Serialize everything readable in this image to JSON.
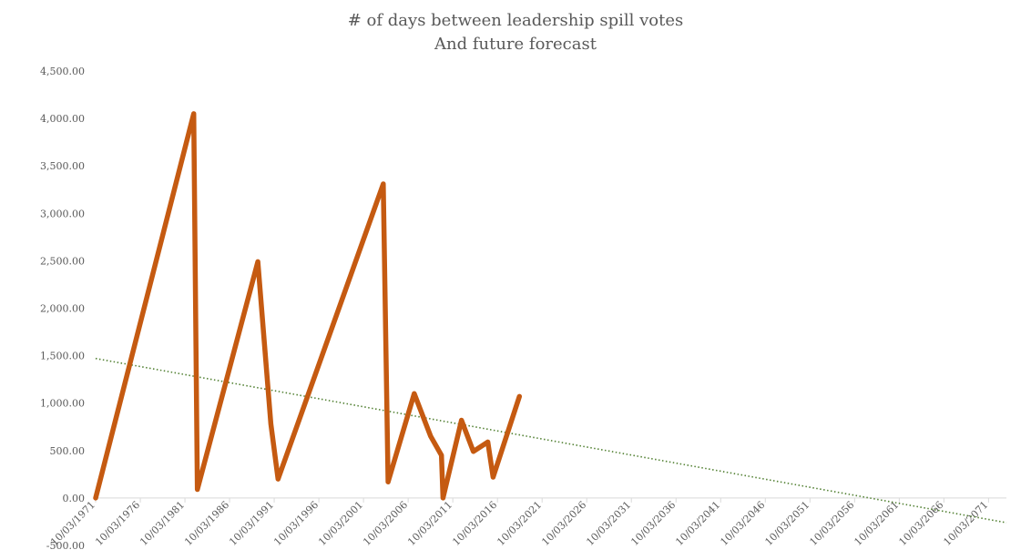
{
  "chart_data": {
    "type": "line",
    "title": "# of days between leadership  spill  votes",
    "subtitle": "And future forecast",
    "xlabel": "",
    "ylabel": "",
    "x_axis": "date",
    "xlim": [
      "1971-03-10",
      "2073-03-10"
    ],
    "ylim": [
      -500,
      4500
    ],
    "y_ticks": [
      -500,
      0,
      500,
      1000,
      1500,
      2000,
      2500,
      3000,
      3500,
      4000,
      4500
    ],
    "y_tick_labels": [
      "-500.00",
      "0.00",
      "500.00",
      "1,000.00",
      "1,500.00",
      "2,000.00",
      "2,500.00",
      "3,000.00",
      "3,500.00",
      "4,000.00",
      "4,500.00"
    ],
    "x_ticks": [
      "1971-03-10",
      "1976-03-10",
      "1981-03-10",
      "1986-03-10",
      "1991-03-10",
      "1996-03-10",
      "2001-03-10",
      "2006-03-10",
      "2011-03-10",
      "2016-03-10",
      "2021-03-10",
      "2026-03-10",
      "2031-03-10",
      "2036-03-10",
      "2041-03-10",
      "2046-03-10",
      "2051-03-10",
      "2056-03-10",
      "2061-03-10",
      "2066-03-10",
      "2071-03-10"
    ],
    "x_tick_labels": [
      "10/03/1971",
      "10/03/1976",
      "10/03/1981",
      "10/03/1986",
      "10/03/1991",
      "10/03/1996",
      "10/03/2001",
      "10/03/2006",
      "10/03/2011",
      "10/03/2016",
      "10/03/2021",
      "10/03/2026",
      "10/03/2031",
      "10/03/2036",
      "10/03/2041",
      "10/03/2046",
      "10/03/2051",
      "10/03/2056",
      "10/03/2061",
      "10/03/2066",
      "10/03/2071"
    ],
    "grid": false,
    "legend": "none",
    "series": [
      {
        "color": "#C55A11",
        "style": "solid",
        "points": [
          {
            "x": "1971-03-10",
            "y": 0
          },
          {
            "x": "1982-03-05",
            "y": 4050
          },
          {
            "x": "1982-07-30",
            "y": 90
          },
          {
            "x": "1989-05-09",
            "y": 2490
          },
          {
            "x": "1990-10-23",
            "y": 780
          },
          {
            "x": "1991-08-13",
            "y": 200
          },
          {
            "x": "2003-05-27",
            "y": 3310
          },
          {
            "x": "2003-12-09",
            "y": 170
          },
          {
            "x": "2006-11-14",
            "y": 1100
          },
          {
            "x": "2008-09-16",
            "y": 650
          },
          {
            "x": "2009-12-01",
            "y": 450
          },
          {
            "x": "2010-02-02",
            "y": 0
          },
          {
            "x": "2012-02-27",
            "y": 820
          },
          {
            "x": "2013-06-26",
            "y": 490
          },
          {
            "x": "2015-02-09",
            "y": 590
          },
          {
            "x": "2015-09-14",
            "y": 220
          },
          {
            "x": "2018-08-24",
            "y": 1070
          }
        ]
      },
      {
        "color": "#548235",
        "style": "dotted",
        "trendline": true,
        "points": [
          {
            "x": "1971-03-10",
            "y": 1470
          },
          {
            "x": "2073-03-10",
            "y": -260
          }
        ]
      }
    ]
  }
}
